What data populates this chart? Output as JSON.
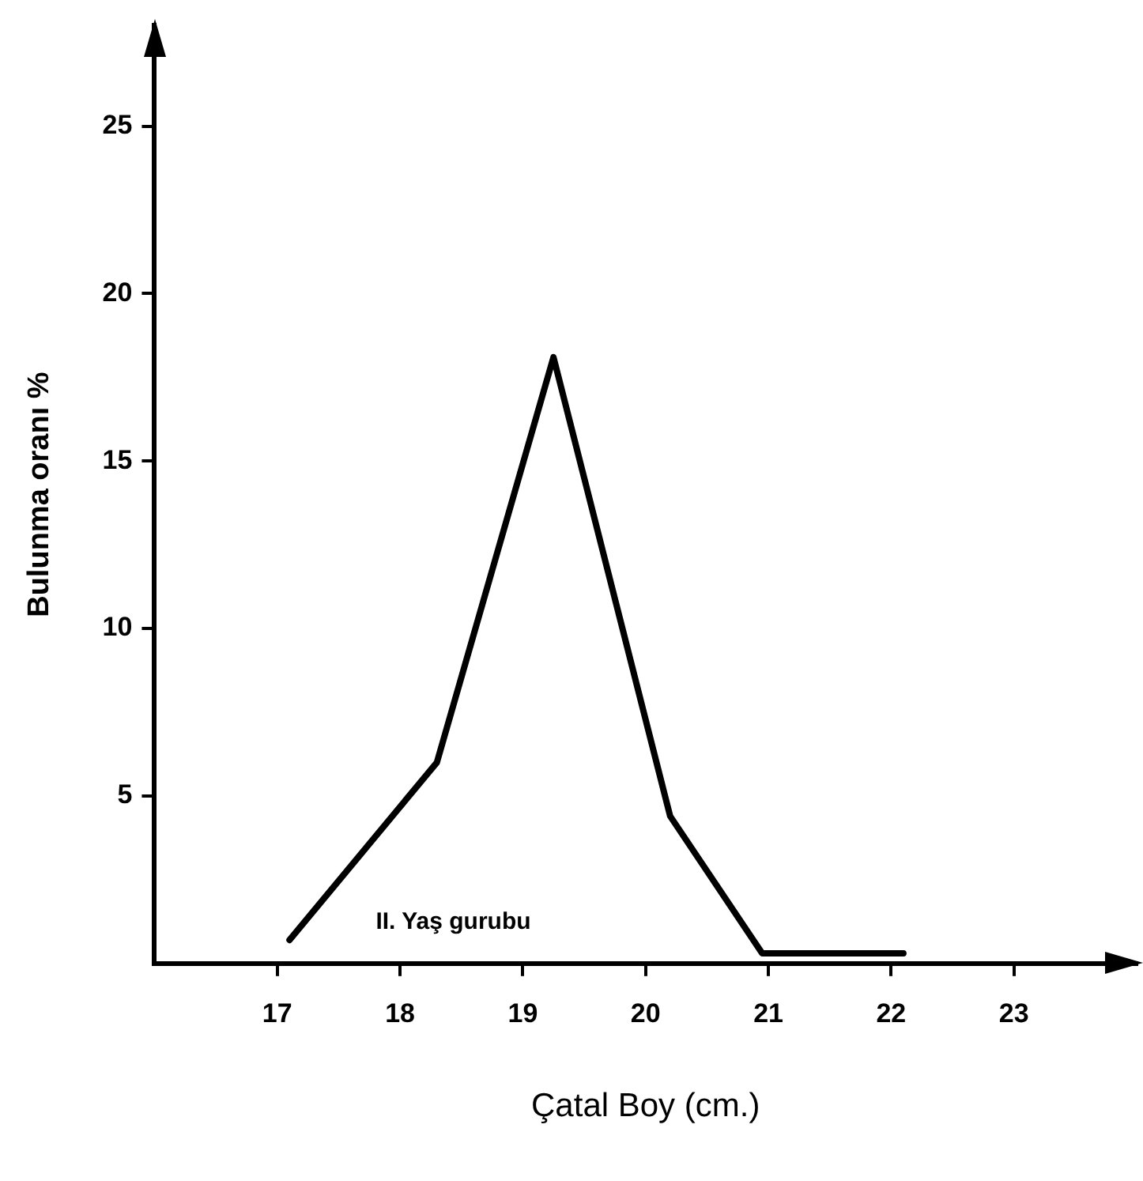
{
  "chart_data": {
    "type": "line",
    "xlabel": "Çatal Boy (cm.)",
    "ylabel": "Bulunma oranı %",
    "annotations": [
      "II. Yaş gurubu"
    ],
    "series": [
      {
        "color": "#000000",
        "x": [
          17.1,
          18.3,
          19.25,
          20.2,
          20.95,
          22.1
        ],
        "values": [
          0.7,
          6.0,
          18.1,
          4.4,
          0.3,
          0.3
        ]
      }
    ],
    "xlim": [
      16,
      24
    ],
    "xticks": [
      17,
      18,
      19,
      20,
      21,
      22,
      23
    ],
    "ylim": [
      0,
      28
    ],
    "yticks": [
      5,
      10,
      15,
      20,
      25
    ],
    "grid": false,
    "legend": false,
    "marker": "none",
    "line_style": "solid"
  }
}
